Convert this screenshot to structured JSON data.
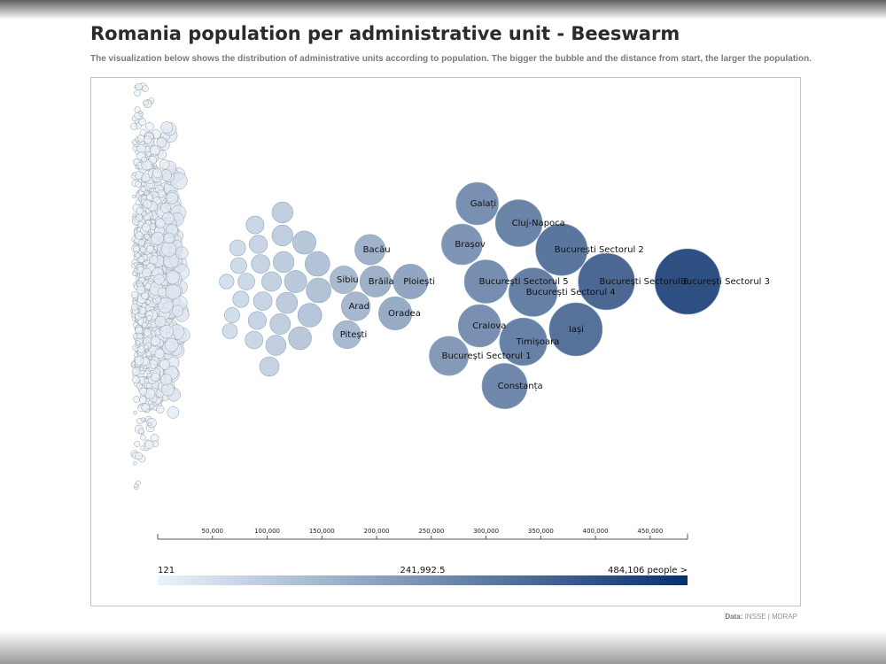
{
  "header": {
    "title": "Romania population per administrative unit - Beeswarm",
    "subtitle": "The visualization below shows the distribution of administrative units according to population. The bigger the bubble and the distance from start, the larger the population."
  },
  "footer": {
    "source_label": "Data:",
    "source_text": "INSSE | MDRAP"
  },
  "chart_data": {
    "type": "scatter",
    "subtype": "beeswarm",
    "x_domain": [
      0,
      484106
    ],
    "x_ticks": [
      "50,000",
      "100,000",
      "150,000",
      "200,000",
      "250,000",
      "300,000",
      "350,000",
      "400,000",
      "450,000"
    ],
    "tick_values": [
      50000,
      100000,
      150000,
      200000,
      250000,
      300000,
      350000,
      400000,
      450000
    ],
    "legend": {
      "min_label": "121",
      "mid_label": "241,992.5",
      "max_label": "484,106 people >",
      "color_start": "#eaf3fb",
      "color_end": "#08306b"
    },
    "small_units_count": 1100,
    "points": [
      {
        "name": "București Sectorul 3",
        "value": 484106,
        "label": "București Sectorul 3"
      },
      {
        "name": "București Sectorul 6",
        "value": 410000,
        "label": "București Sectorul 6"
      },
      {
        "name": "Iași",
        "value": 382000,
        "label": "Iași"
      },
      {
        "name": "București Sectorul 2",
        "value": 369000,
        "label": "București Sectorul 2"
      },
      {
        "name": "București Sectorul 4",
        "value": 343000,
        "label": "București Sectorul 4"
      },
      {
        "name": "Timișoara",
        "value": 334000,
        "label": "Timișoara"
      },
      {
        "name": "Cluj-Napoca",
        "value": 330000,
        "label": "Cluj-Napoca"
      },
      {
        "name": "Constanța",
        "value": 317000,
        "label": "Constanța"
      },
      {
        "name": "București Sectorul 5",
        "value": 300000,
        "label": "București Sectorul 5"
      },
      {
        "name": "Craiova",
        "value": 294000,
        "label": "Craiova"
      },
      {
        "name": "Galați",
        "value": 292000,
        "label": "Galați"
      },
      {
        "name": "București Sectorul 1",
        "value": 266000,
        "label": "București Sectorul 1"
      },
      {
        "name": "Brașov",
        "value": 278000,
        "label": "Brașov"
      },
      {
        "name": "Ploiești",
        "value": 231000,
        "label": "Ploiești"
      },
      {
        "name": "Oradea",
        "value": 217000,
        "label": "Oradea"
      },
      {
        "name": "Brăila",
        "value": 199000,
        "label": "Brăila"
      },
      {
        "name": "Arad",
        "value": 181000,
        "label": "Arad"
      },
      {
        "name": "Bacău",
        "value": 194000,
        "label": "Bacău"
      },
      {
        "name": "Pitești",
        "value": 173000,
        "label": "Pitești"
      },
      {
        "name": "Sibiu",
        "value": 170000,
        "label": "Sibiu"
      },
      {
        "name": "",
        "value": 115000,
        "label": ""
      },
      {
        "name": "",
        "value": 139000,
        "label": ""
      },
      {
        "name": "",
        "value": 134000,
        "label": ""
      },
      {
        "name": "",
        "value": 108000,
        "label": ""
      },
      {
        "name": "",
        "value": 112000,
        "label": ""
      },
      {
        "name": "",
        "value": 126000,
        "label": ""
      },
      {
        "name": "",
        "value": 146000,
        "label": ""
      },
      {
        "name": "",
        "value": 118000,
        "label": ""
      },
      {
        "name": "",
        "value": 102000,
        "label": ""
      },
      {
        "name": "",
        "value": 114000,
        "label": ""
      },
      {
        "name": "",
        "value": 130000,
        "label": ""
      },
      {
        "name": "",
        "value": 147000,
        "label": ""
      },
      {
        "name": "",
        "value": 91000,
        "label": ""
      },
      {
        "name": "",
        "value": 92000,
        "label": ""
      },
      {
        "name": "",
        "value": 94000,
        "label": ""
      },
      {
        "name": "",
        "value": 88000,
        "label": ""
      },
      {
        "name": "",
        "value": 96000,
        "label": ""
      },
      {
        "name": "",
        "value": 104000,
        "label": ""
      },
      {
        "name": "",
        "value": 89000,
        "label": ""
      },
      {
        "name": "",
        "value": 114000,
        "label": ""
      },
      {
        "name": "",
        "value": 81000,
        "label": ""
      },
      {
        "name": "",
        "value": 73000,
        "label": ""
      },
      {
        "name": "",
        "value": 74000,
        "label": ""
      },
      {
        "name": "",
        "value": 76000,
        "label": ""
      },
      {
        "name": "",
        "value": 63000,
        "label": ""
      },
      {
        "name": "",
        "value": 66000,
        "label": ""
      },
      {
        "name": "",
        "value": 68000,
        "label": ""
      }
    ]
  }
}
